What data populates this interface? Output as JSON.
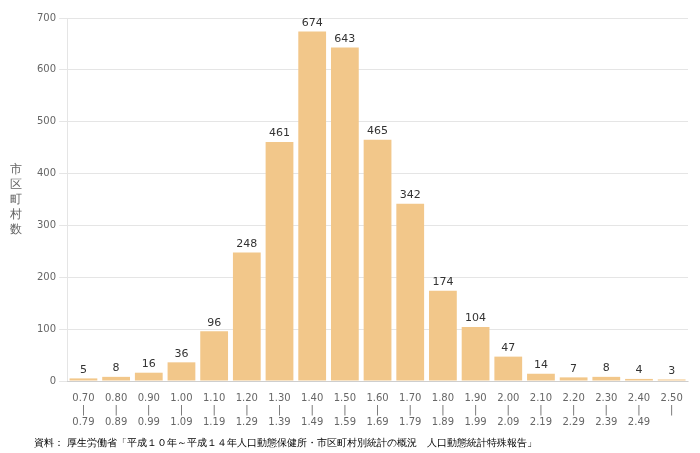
{
  "chart_data": {
    "type": "bar",
    "categories": [
      "0.70\n|\n0.79",
      "0.80\n|\n0.89",
      "0.90\n|\n0.99",
      "1.00\n|\n1.09",
      "1.10\n|\n1.19",
      "1.20\n|\n1.29",
      "1.30\n|\n1.39",
      "1.40\n|\n1.49",
      "1.50\n|\n1.59",
      "1.60\n|\n1.69",
      "1.70\n|\n1.79",
      "1.80\n|\n1.89",
      "1.90\n|\n1.99",
      "2.00\n|\n2.09",
      "2.10\n|\n2.19",
      "2.20\n|\n2.29",
      "2.30\n|\n2.39",
      "2.40\n|\n2.49",
      "2.50\n|"
    ],
    "values": [
      5,
      8,
      16,
      36,
      96,
      248,
      461,
      674,
      643,
      465,
      342,
      174,
      104,
      47,
      14,
      7,
      8,
      4,
      3
    ],
    "color": "#F2C78A",
    "ylabel": "市\n区\n町\n村\n数",
    "ylim": [
      0,
      700
    ],
    "yticks": [
      0,
      100,
      200,
      300,
      400,
      500,
      600,
      700
    ],
    "grid": true,
    "data_labels": true,
    "annotations": [
      "資料： 厚生労働省「平成１０年～平成１４年人口動態保健所・市区町村別統計の概況　人口動態統計特殊報告」"
    ]
  }
}
